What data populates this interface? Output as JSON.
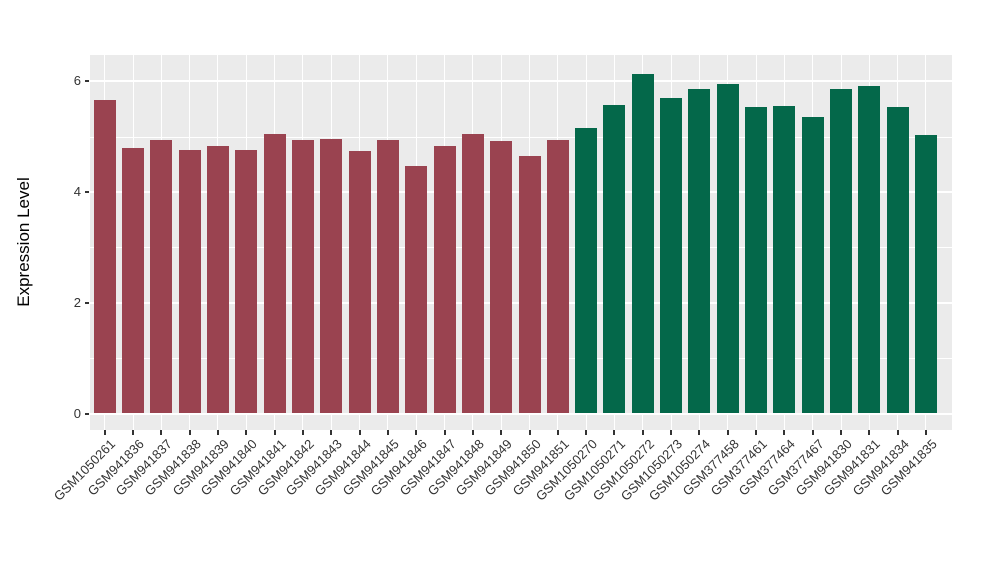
{
  "chart_data": {
    "type": "bar",
    "title": "",
    "xlabel": "",
    "ylabel": "Expression Level",
    "ylim": [
      0,
      6.5
    ],
    "yticks": [
      0,
      2,
      4,
      6
    ],
    "ytick_labels": [
      "0",
      "2",
      "4",
      "6"
    ],
    "y_minor_gridlines": [
      1,
      3,
      5
    ],
    "grid": true,
    "legend_position": "none",
    "panel_background": "#EBEBEB",
    "gridline_color": "#FFFFFF",
    "axis_text_color": "#333333",
    "tick_mark_color": "#333333",
    "categories": [
      "GSM1050261",
      "GSM941836",
      "GSM941837",
      "GSM941838",
      "GSM941839",
      "GSM941840",
      "GSM941841",
      "GSM941842",
      "GSM941843",
      "GSM941844",
      "GSM941845",
      "GSM941846",
      "GSM941847",
      "GSM941848",
      "GSM941849",
      "GSM941850",
      "GSM941851",
      "GSM1050270",
      "GSM1050271",
      "GSM1050272",
      "GSM1050273",
      "GSM1050274",
      "GSM377458",
      "GSM377461",
      "GSM377464",
      "GSM377467",
      "GSM941830",
      "GSM941831",
      "GSM941834",
      "GSM941835"
    ],
    "values": [
      5.65,
      4.8,
      4.93,
      4.76,
      4.83,
      4.75,
      5.04,
      4.94,
      4.96,
      4.73,
      4.93,
      4.47,
      4.82,
      5.04,
      4.92,
      4.65,
      4.94,
      5.16,
      5.57,
      6.13,
      5.7,
      5.85,
      5.94,
      5.53,
      5.55,
      5.36,
      5.86,
      5.91,
      5.53,
      5.02
    ],
    "groups": [
      0,
      0,
      0,
      0,
      0,
      0,
      0,
      0,
      0,
      0,
      0,
      0,
      0,
      0,
      0,
      0,
      0,
      1,
      1,
      1,
      1,
      1,
      1,
      1,
      1,
      1,
      1,
      1,
      1,
      1
    ],
    "group_colors": [
      "#9A4350",
      "#04684A"
    ]
  }
}
